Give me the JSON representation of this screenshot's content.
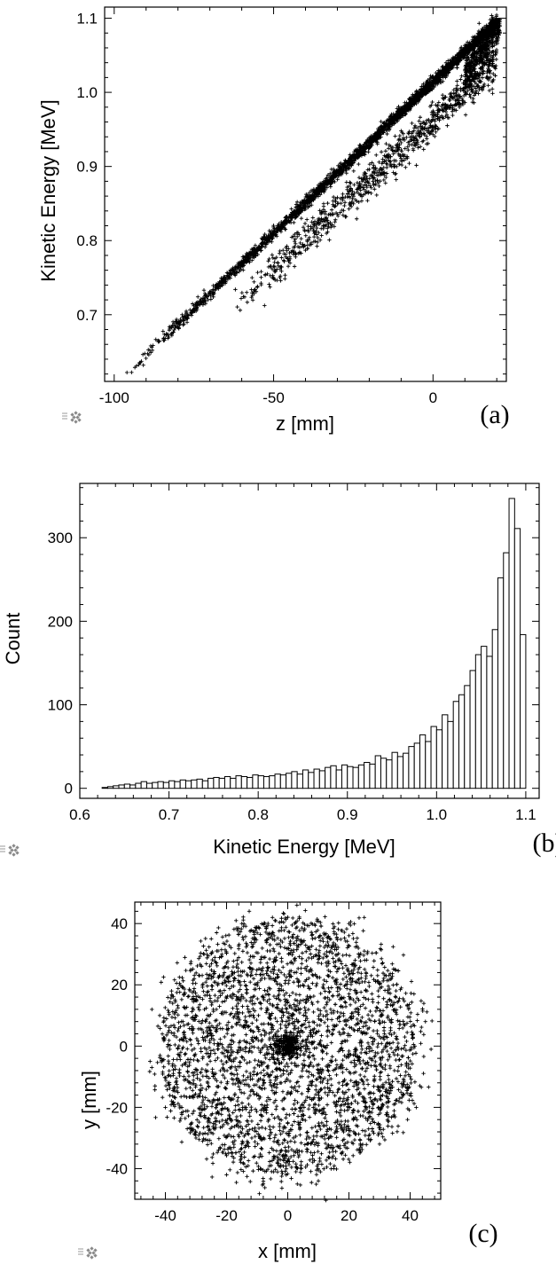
{
  "chart_data": [
    {
      "type": "scatter",
      "panel_label": "(a)",
      "xlabel": "z [mm]",
      "ylabel": "Kinetic Energy [MeV]",
      "xlim": [
        -103,
        23
      ],
      "ylim": [
        0.61,
        1.115
      ],
      "xticks": [
        -100,
        -50,
        0
      ],
      "xtick_labels": [
        "-100",
        "-50",
        "0"
      ],
      "yticks": [
        0.7,
        0.8,
        0.9,
        1.0,
        1.1
      ],
      "ytick_labels": [
        "0.7",
        "0.8",
        "0.9",
        "1.0",
        "1.1"
      ],
      "series": [
        {
          "points": [
            [
              -96,
              0.622
            ],
            [
              -92,
              0.635
            ],
            [
              -88,
              0.652
            ],
            [
              -84,
              0.668
            ],
            [
              -80,
              0.684
            ],
            [
              -76,
              0.701
            ],
            [
              -72,
              0.718
            ],
            [
              -68,
              0.735
            ],
            [
              -64,
              0.752
            ],
            [
              -60,
              0.768
            ],
            [
              -56,
              0.785
            ],
            [
              -52,
              0.802
            ],
            [
              -48,
              0.818
            ],
            [
              -44,
              0.835
            ],
            [
              -40,
              0.851
            ],
            [
              -36,
              0.868
            ],
            [
              -32,
              0.884
            ],
            [
              -28,
              0.9
            ],
            [
              -24,
              0.917
            ],
            [
              -20,
              0.933
            ],
            [
              -16,
              0.949
            ],
            [
              -12,
              0.966
            ],
            [
              -8,
              0.982
            ],
            [
              -4,
              0.998
            ],
            [
              0,
              1.014
            ],
            [
              4,
              1.03
            ],
            [
              8,
              1.046
            ],
            [
              12,
              1.062
            ],
            [
              16,
              1.078
            ],
            [
              19,
              1.093
            ],
            [
              -62,
              0.734
            ],
            [
              -55,
              0.757
            ],
            [
              -48,
              0.786
            ],
            [
              -42,
              0.808
            ],
            [
              -36,
              0.829
            ],
            [
              -30,
              0.85
            ],
            [
              -26,
              0.868
            ],
            [
              -22,
              0.883
            ],
            [
              -18,
              0.898
            ],
            [
              -14,
              0.915
            ],
            [
              -10,
              0.932
            ],
            [
              -6,
              0.948
            ],
            [
              -2,
              0.962
            ],
            [
              2,
              0.976
            ],
            [
              6,
              0.993
            ],
            [
              10,
              1.006
            ],
            [
              14,
              1.025
            ],
            [
              18,
              1.044
            ],
            [
              -38,
              0.825
            ],
            [
              -30,
              0.858
            ],
            [
              -20,
              0.896
            ],
            [
              -10,
              0.948
            ],
            [
              0,
              0.975
            ],
            [
              10,
              1.01
            ],
            [
              16,
              1.06
            ],
            [
              20,
              1.08
            ],
            [
              19,
              1.09
            ],
            [
              20,
              1.097
            ]
          ]
        }
      ]
    },
    {
      "type": "bar",
      "panel_label": "(b)",
      "xlabel": "Kinetic Energy [MeV]",
      "ylabel": "Count",
      "xlim": [
        0.6,
        1.115
      ],
      "ylim": [
        -12,
        365
      ],
      "xticks": [
        0.6,
        0.7,
        0.8,
        0.9,
        1.0,
        1.1
      ],
      "xtick_labels": [
        "0.6",
        "0.7",
        "0.8",
        "0.9",
        "1.0",
        "1.1"
      ],
      "yticks": [
        0,
        100,
        200,
        300
      ],
      "ytick_labels": [
        "0",
        "100",
        "200",
        "300"
      ],
      "bin_start": 0.625,
      "bin_width": 0.00625,
      "values": [
        1,
        2,
        3,
        4,
        5,
        4,
        6,
        8,
        6,
        7,
        8,
        7,
        9,
        8,
        10,
        9,
        10,
        11,
        9,
        12,
        13,
        12,
        14,
        12,
        15,
        14,
        13,
        16,
        15,
        14,
        15,
        17,
        16,
        18,
        20,
        17,
        22,
        19,
        23,
        21,
        25,
        27,
        22,
        28,
        26,
        25,
        28,
        31,
        29,
        39,
        36,
        34,
        43,
        38,
        42,
        50,
        54,
        64,
        56,
        74,
        70,
        88,
        80,
        104,
        112,
        123,
        141,
        160,
        170,
        158,
        190,
        252,
        282,
        347,
        311,
        184
      ]
    },
    {
      "type": "scatter",
      "panel_label": "(c)",
      "xlabel": "x [mm]",
      "ylabel": "y [mm]",
      "xlim": [
        -50,
        50
      ],
      "ylim": [
        -50,
        47
      ],
      "xticks": [
        -40,
        -20,
        0,
        20,
        40
      ],
      "xtick_labels": [
        "-40",
        "-20",
        "0",
        "20",
        "40"
      ],
      "yticks": [
        -40,
        -20,
        0,
        20,
        40
      ],
      "ytick_labels": [
        "-40",
        "-20",
        "0",
        "20",
        "40"
      ],
      "distribution": "uniform disk, radius about 42 mm, centered at (0, 0), with a denser core at the center",
      "series": [
        {
          "points": [
            [
              0,
              0
            ],
            [
              3,
              46
            ],
            [
              -15,
              40
            ],
            [
              25,
              42
            ],
            [
              -38,
              18
            ],
            [
              40,
              -10
            ],
            [
              -45,
              -5
            ],
            [
              45,
              8
            ],
            [
              -30,
              -30
            ],
            [
              30,
              -32
            ],
            [
              10,
              -44
            ],
            [
              -8,
              -45
            ],
            [
              -25,
              35
            ],
            [
              35,
              25
            ],
            [
              -40,
              -20
            ],
            [
              20,
              40
            ],
            [
              -5,
              42
            ],
            [
              42,
              -20
            ],
            [
              -20,
              -42
            ],
            [
              15,
              -40
            ],
            [
              5,
              20
            ],
            [
              -12,
              10
            ],
            [
              18,
              -15
            ],
            [
              -22,
              -8
            ],
            [
              28,
              5
            ],
            [
              -30,
              15
            ],
            [
              0,
              -25
            ],
            [
              12,
              30
            ]
          ]
        }
      ]
    }
  ]
}
